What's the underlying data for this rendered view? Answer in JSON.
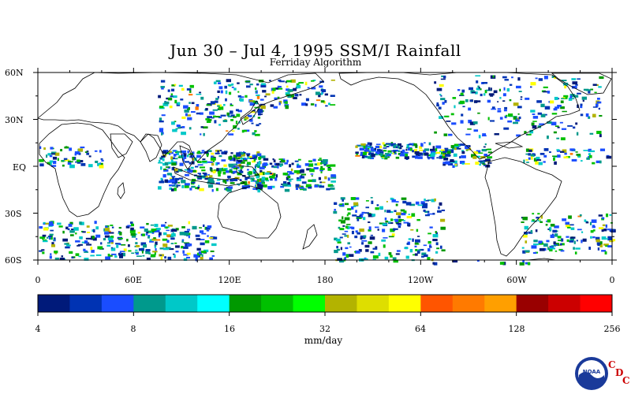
{
  "title": "Jun 30 – Jul 4, 1995 SSM/I Rainfall",
  "subtitle": "Ferriday Algorithm",
  "lat_labels": [
    "60N",
    "30N",
    "EQ",
    "30S",
    "60S"
  ],
  "lon_labels": [
    "0",
    "60E",
    "120E",
    "180",
    "120W",
    "60W",
    "0"
  ],
  "colorbar": {
    "colors": [
      "#001a7a",
      "#0033b3",
      "#1a4dff",
      "#00998c",
      "#00c8c8",
      "#00ffff",
      "#009900",
      "#00c000",
      "#00ff00",
      "#b3b300",
      "#dede00",
      "#ffff00",
      "#ff5500",
      "#ff7a00",
      "#ff9f00",
      "#990000",
      "#cc0000",
      "#ff0000"
    ],
    "tick_labels": [
      "4",
      "8",
      "16",
      "32",
      "64",
      "128",
      "256"
    ],
    "units": "mm/day"
  },
  "logo": {
    "text": "NOAA",
    "letters": [
      "C",
      "D",
      "C"
    ]
  }
}
